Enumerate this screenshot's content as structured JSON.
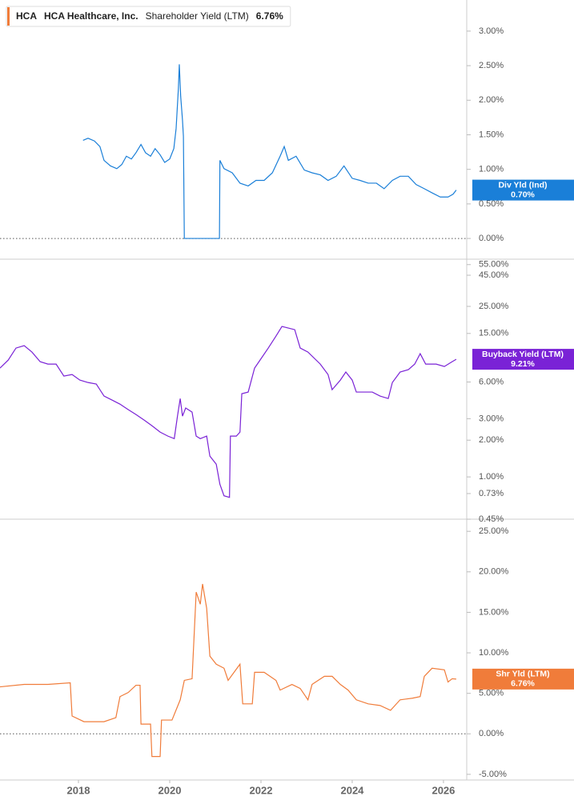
{
  "chart_data": [
    {
      "type": "line",
      "ticker": "HCA",
      "company": "HCA Healthcare, Inc.",
      "badge_label": "Div Yld (Ind)",
      "current_label": "0.70%",
      "zero_line": true,
      "xlim": [
        2016.28,
        2026.51
      ],
      "ylim": [
        -0.3,
        3.45
      ],
      "yticks": [
        {
          "value": 0,
          "label": "0.00%"
        },
        {
          "value": 0.5,
          "label": "0.50%"
        },
        {
          "value": 1,
          "label": "1.00%"
        },
        {
          "value": 1.5,
          "label": "1.50%"
        },
        {
          "value": 2,
          "label": "2.00%"
        },
        {
          "value": 2.5,
          "label": "2.50%"
        },
        {
          "value": 3,
          "label": "3.00%"
        }
      ],
      "x": [
        2018.1,
        2018.21,
        2018.35,
        2018.47,
        2018.56,
        2018.7,
        2018.84,
        2018.95,
        2019.05,
        2019.16,
        2019.26,
        2019.37,
        2019.47,
        2019.58,
        2019.68,
        2019.79,
        2019.89,
        2020.0,
        2020.09,
        2020.14,
        2020.19,
        2020.21,
        2020.24,
        2020.28,
        2020.3,
        2020.32,
        2021.09,
        2021.1,
        2021.19,
        2021.37,
        2021.54,
        2021.72,
        2021.89,
        2022.07,
        2022.25,
        2022.42,
        2022.51,
        2022.6,
        2022.77,
        2022.95,
        2023.12,
        2023.3,
        2023.47,
        2023.65,
        2023.82,
        2024.0,
        2024.17,
        2024.35,
        2024.53,
        2024.7,
        2024.88,
        2025.05,
        2025.23,
        2025.4,
        2025.58,
        2025.75,
        2025.93,
        2026.1,
        2026.21,
        2026.28
      ],
      "series": [
        {
          "name": "Dividend Yield (Ind)",
          "color": "#1a7fd8",
          "values": [
            1.42,
            1.45,
            1.41,
            1.33,
            1.13,
            1.05,
            1.01,
            1.07,
            1.19,
            1.15,
            1.24,
            1.36,
            1.24,
            1.19,
            1.3,
            1.21,
            1.1,
            1.15,
            1.3,
            1.59,
            2.17,
            2.52,
            2.06,
            1.71,
            1.48,
            0,
            0,
            1.13,
            1.01,
            0.95,
            0.8,
            0.76,
            0.84,
            0.84,
            0.95,
            1.19,
            1.33,
            1.13,
            1.19,
            0.99,
            0.95,
            0.92,
            0.84,
            0.9,
            1.05,
            0.87,
            0.84,
            0.8,
            0.8,
            0.72,
            0.84,
            0.9,
            0.9,
            0.78,
            0.72,
            0.66,
            0.6,
            0.6,
            0.64,
            0.7
          ]
        }
      ]
    },
    {
      "type": "line",
      "ticker": "HCA",
      "company": "HCA Healthcare, Inc.",
      "badge_label": "Buyback Yield (LTM)",
      "current_label": "9.21%",
      "log_scale": true,
      "xlim": [
        2016.28,
        2026.51
      ],
      "ylim": [
        0.45,
        60
      ],
      "yticks": [
        {
          "value": 0.45,
          "label": "0.45%"
        },
        {
          "value": 0.73,
          "label": "0.73%"
        },
        {
          "value": 1,
          "label": "1.00%"
        },
        {
          "value": 2,
          "label": "2.00%"
        },
        {
          "value": 3,
          "label": "3.00%"
        },
        {
          "value": 6,
          "label": "6.00%"
        },
        {
          "value": 15,
          "label": "15.00%"
        },
        {
          "value": 25,
          "label": "25.00%"
        },
        {
          "value": 45,
          "label": "45.00%"
        },
        {
          "value": 55,
          "label": "55.00%"
        }
      ],
      "x": [
        2016.28,
        2016.46,
        2016.63,
        2016.81,
        2016.98,
        2017.16,
        2017.33,
        2017.51,
        2017.68,
        2017.86,
        2018.03,
        2018.21,
        2018.39,
        2018.56,
        2018.74,
        2018.91,
        2019.09,
        2019.26,
        2019.44,
        2019.61,
        2019.79,
        2019.96,
        2020.1,
        2020.17,
        2020.23,
        2020.28,
        2020.35,
        2020.49,
        2020.58,
        2020.67,
        2020.81,
        2020.88,
        2021.02,
        2021.1,
        2021.19,
        2021.31,
        2021.33,
        2021.46,
        2021.54,
        2021.58,
        2021.72,
        2021.86,
        2021.98,
        2022.16,
        2022.33,
        2022.46,
        2022.6,
        2022.74,
        2022.86,
        2023.03,
        2023.3,
        2023.47,
        2023.56,
        2023.74,
        2023.86,
        2024.0,
        2024.09,
        2024.26,
        2024.44,
        2024.61,
        2024.79,
        2024.88,
        2025.05,
        2025.23,
        2025.37,
        2025.49,
        2025.61,
        2025.84,
        2026.02,
        2026.19,
        2026.28
      ],
      "series": [
        {
          "name": "Buyback Yield (LTM)",
          "color": "#7a22d6",
          "values": [
            7.8,
            9.07,
            11.38,
            11.91,
            10.55,
            8.8,
            8.41,
            8.41,
            6.71,
            6.91,
            6.22,
            5.94,
            5.77,
            4.6,
            4.26,
            3.95,
            3.56,
            3.25,
            2.92,
            2.63,
            2.33,
            2.16,
            2.06,
            3.15,
            4.39,
            3.15,
            3.67,
            3.4,
            2.16,
            2.06,
            2.16,
            1.48,
            1.27,
            0.87,
            0.7,
            0.68,
            2.16,
            2.16,
            2.33,
            4.81,
            4.96,
            7.8,
            9.07,
            11.38,
            14.28,
            17.11,
            16.61,
            16.11,
            11.38,
            10.55,
            8.41,
            6.91,
            5.19,
            6.22,
            7.24,
            6.22,
            4.96,
            4.96,
            4.96,
            4.6,
            4.39,
            5.94,
            7.24,
            7.57,
            8.41,
            10.24,
            8.41,
            8.41,
            8.04,
            8.8,
            9.21
          ]
        }
      ]
    },
    {
      "type": "line",
      "ticker": "HCA",
      "company": "HCA Healthcare, Inc.",
      "badge_label": "Shr Yld (LTM)",
      "current_label": "6.76%",
      "zero_line": true,
      "xlim": [
        2016.28,
        2026.51
      ],
      "xticks": [
        2018,
        2020,
        2022,
        2024,
        2026
      ],
      "ylim": [
        -5.7,
        26.4
      ],
      "yticks": [
        {
          "value": -5,
          "label": "-5.00%"
        },
        {
          "value": 0,
          "label": "0.00%"
        },
        {
          "value": 5,
          "label": "5.00%"
        },
        {
          "value": 10,
          "label": "10.00%"
        },
        {
          "value": 15,
          "label": "15.00%"
        },
        {
          "value": 20,
          "label": "20.00%"
        },
        {
          "value": 25,
          "label": "25.00%"
        }
      ],
      "x": [
        2016.28,
        2016.81,
        2017.33,
        2017.82,
        2017.86,
        2018.12,
        2018.56,
        2018.82,
        2018.91,
        2019.09,
        2019.26,
        2019.35,
        2019.37,
        2019.58,
        2019.61,
        2019.79,
        2019.82,
        2020.05,
        2020.23,
        2020.32,
        2020.49,
        2020.58,
        2020.67,
        2020.72,
        2020.81,
        2020.88,
        2021.02,
        2021.19,
        2021.28,
        2021.54,
        2021.6,
        2021.81,
        2021.86,
        2022.07,
        2022.33,
        2022.42,
        2022.68,
        2022.86,
        2023.03,
        2023.12,
        2023.39,
        2023.56,
        2023.74,
        2023.91,
        2024.09,
        2024.35,
        2024.61,
        2024.84,
        2025.05,
        2025.32,
        2025.49,
        2025.58,
        2025.75,
        2026.02,
        2026.1,
        2026.19,
        2026.28
      ],
      "series": [
        {
          "name": "Shareholder Yield (LTM)",
          "color": "#f07c3a",
          "values": [
            5.8,
            6.1,
            6.1,
            6.3,
            2.2,
            1.5,
            1.5,
            2.0,
            4.6,
            5.1,
            6.0,
            6.0,
            1.2,
            1.2,
            -2.8,
            -2.8,
            1.7,
            1.7,
            4.2,
            6.6,
            6.8,
            17.5,
            16.0,
            18.5,
            15.5,
            9.6,
            8.6,
            8.1,
            6.6,
            8.6,
            3.7,
            3.7,
            7.6,
            7.6,
            6.6,
            5.4,
            6.1,
            5.6,
            4.2,
            6.1,
            7.1,
            7.1,
            6.1,
            5.4,
            4.2,
            3.7,
            3.5,
            2.9,
            4.2,
            4.4,
            4.6,
            7.1,
            8.1,
            7.9,
            6.4,
            6.8,
            6.76
          ]
        }
      ]
    }
  ]
}
